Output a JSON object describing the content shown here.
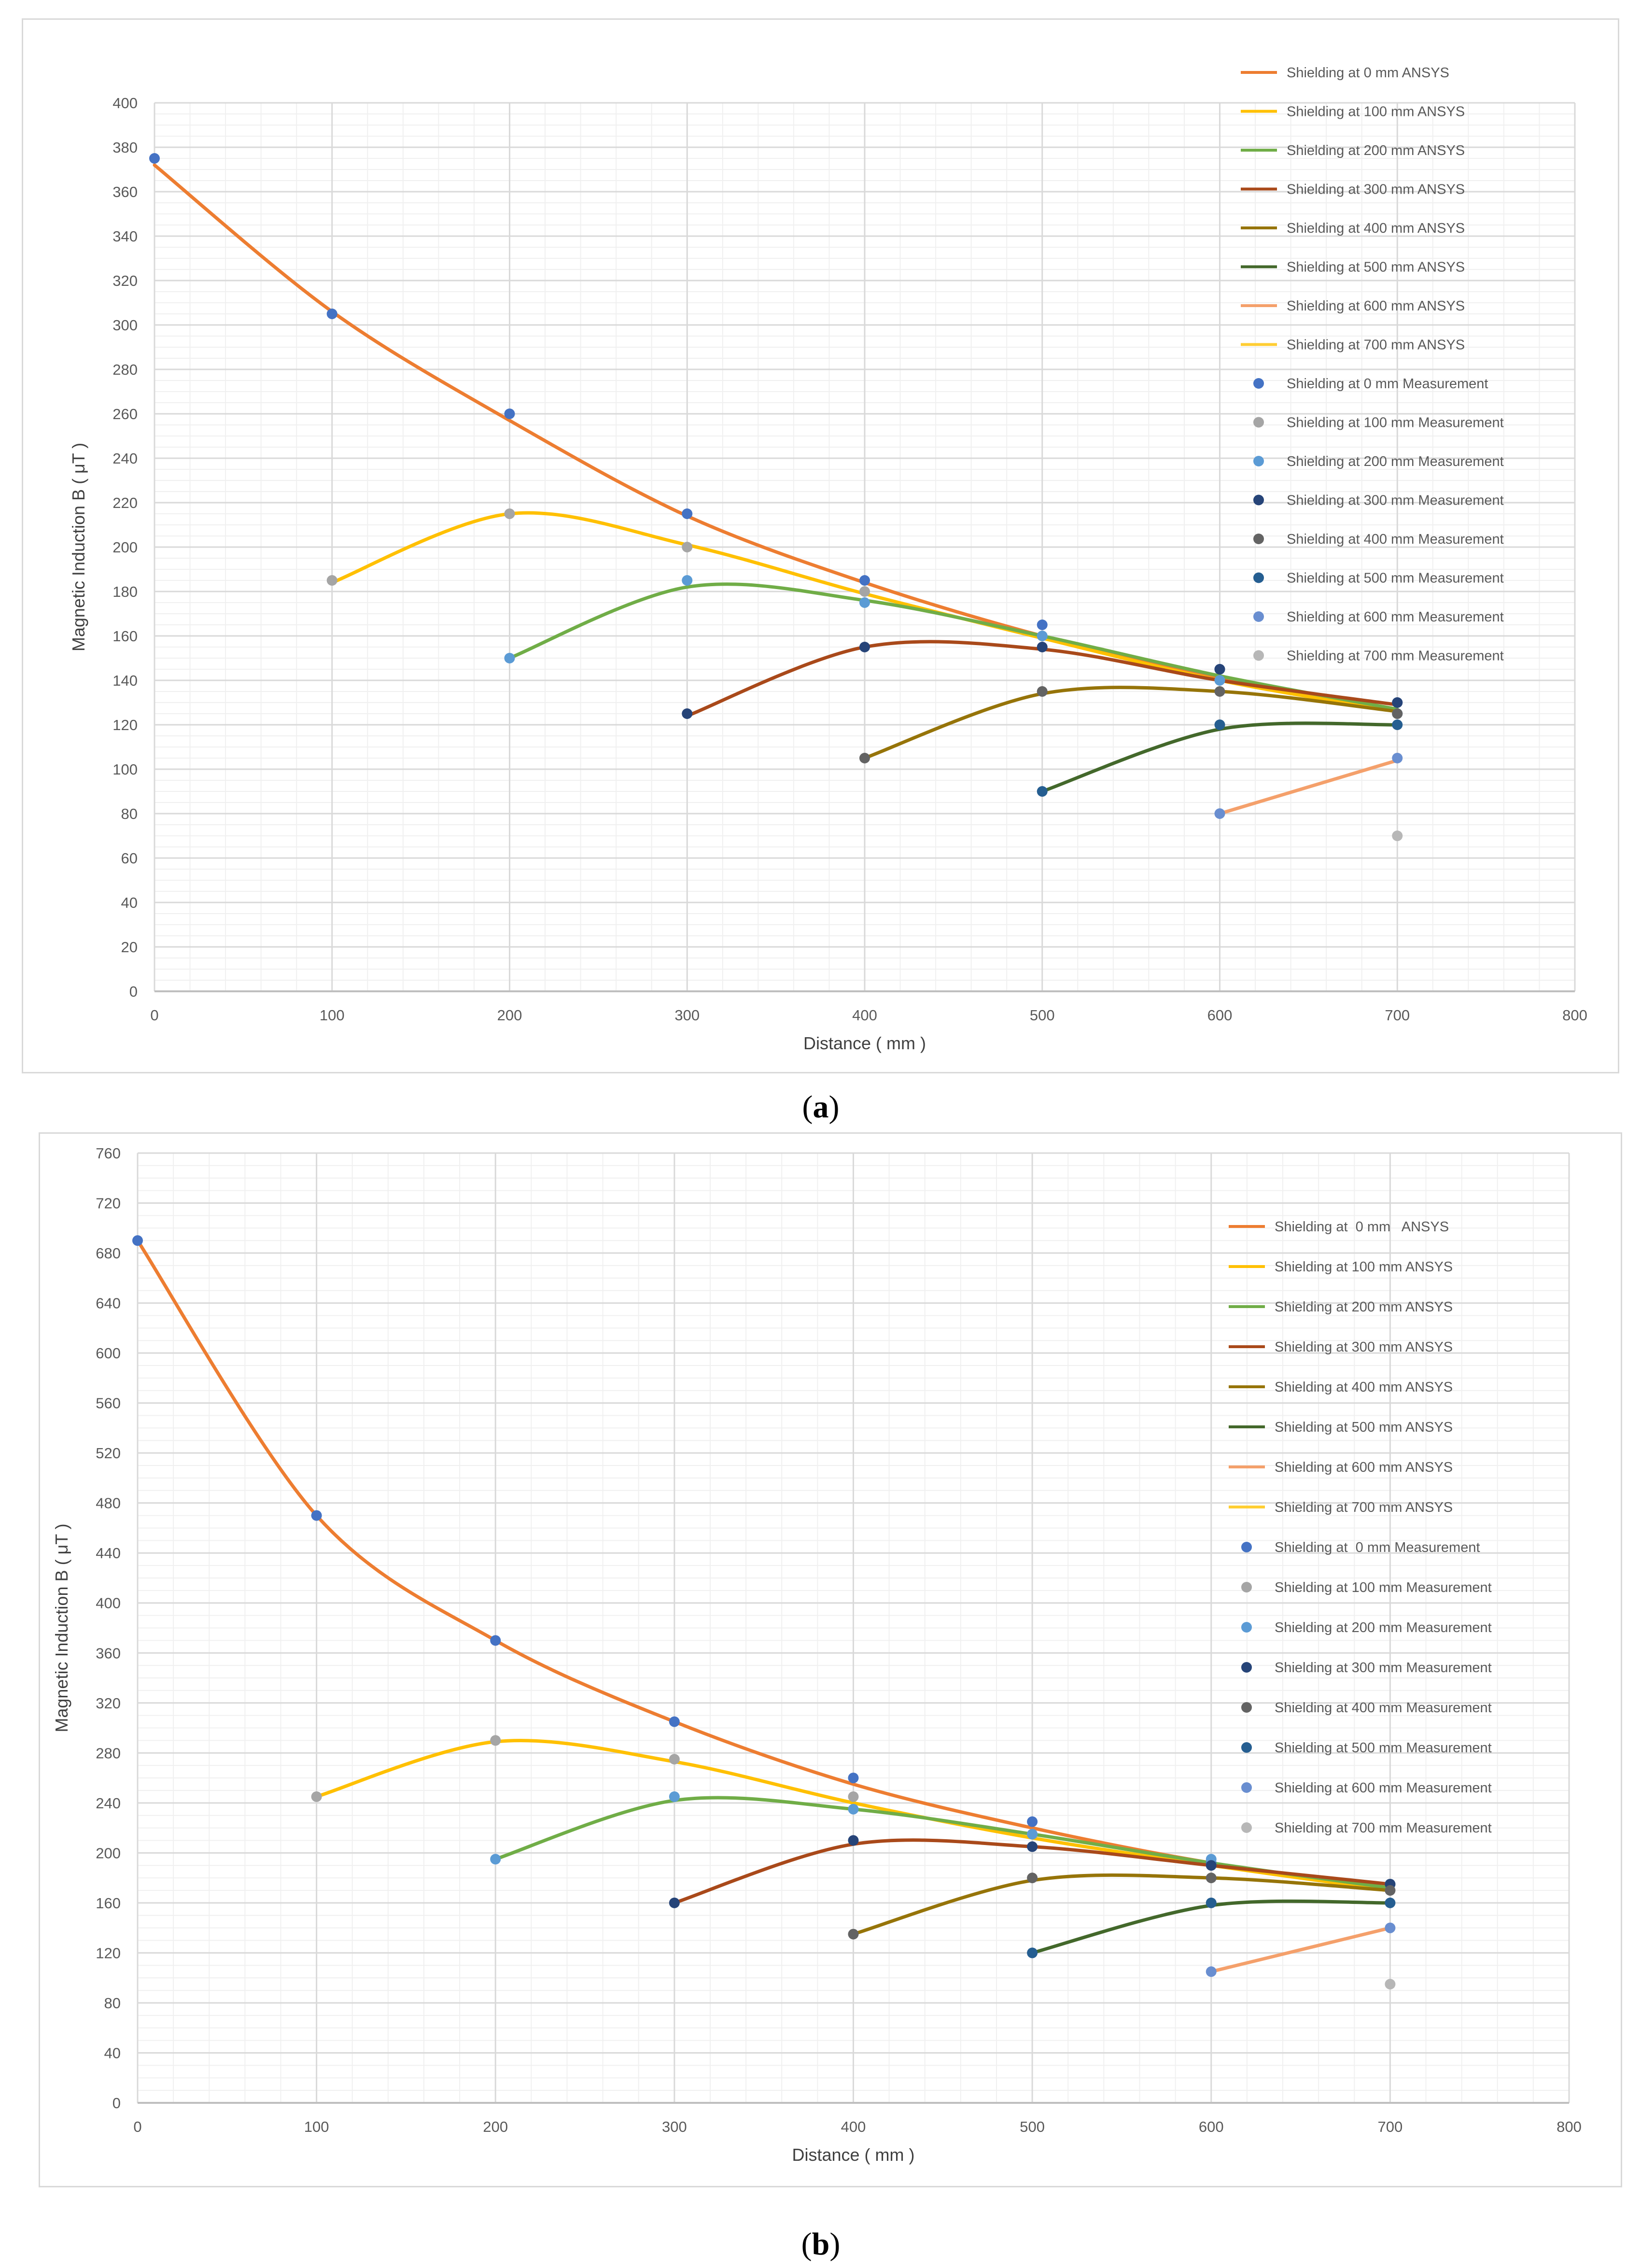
{
  "figure": {
    "panel_a_label": "a",
    "panel_b_label": "b",
    "colors": {
      "orange": "#ED7D31",
      "yellow": "#FFC000",
      "green": "#70AD47",
      "brown": "#A9491A",
      "olive": "#967409",
      "darkgreen": "#43682B",
      "lightorange": "#F4A06B",
      "lightyellow": "#FFCE33",
      "m_blue": "#4472C4",
      "m_gray": "#A5A5A5",
      "m_lightblue": "#5B9BD5",
      "m_navy": "#264478",
      "m_darkgray": "#636363",
      "m_steel": "#255E91",
      "m_periwinkle": "#698ED0",
      "m_silver": "#B7B7B7"
    }
  },
  "chart_data": [
    {
      "type": "line",
      "panel": "a",
      "xlabel": "Distance ( mm )",
      "ylabel": "Magnetic Induction B ( μT )",
      "xlim": [
        0,
        800
      ],
      "ylim": [
        0,
        400
      ],
      "xticks": [
        0,
        100,
        200,
        300,
        400,
        500,
        600,
        700,
        800
      ],
      "yticks": [
        0,
        20,
        40,
        60,
        80,
        100,
        120,
        140,
        160,
        180,
        200,
        220,
        240,
        260,
        280,
        300,
        320,
        340,
        360,
        380,
        400
      ],
      "legend_position": "top-right",
      "ansys_series": [
        {
          "name": "Shielding at 0 mm ANSYS",
          "color": "#ED7D31",
          "x": [
            0,
            100,
            200,
            300,
            400,
            500,
            600,
            700
          ],
          "y": [
            372,
            306,
            257,
            214,
            184,
            160,
            141,
            126
          ]
        },
        {
          "name": "Shielding at 100 mm ANSYS",
          "color": "#FFC000",
          "x": [
            100,
            200,
            300,
            400,
            500,
            600,
            700
          ],
          "y": [
            184,
            215,
            201,
            179,
            159,
            140,
            126
          ]
        },
        {
          "name": "Shielding at 200 mm ANSYS",
          "color": "#70AD47",
          "x": [
            200,
            300,
            400,
            500,
            600,
            700
          ],
          "y": [
            150,
            182,
            176,
            160,
            142,
            127
          ]
        },
        {
          "name": "Shielding at 300 mm ANSYS",
          "color": "#A9491A",
          "x": [
            300,
            400,
            500,
            600,
            700
          ],
          "y": [
            124,
            155,
            154,
            140,
            129
          ]
        },
        {
          "name": "Shielding at 400 mm ANSYS",
          "color": "#967409",
          "x": [
            400,
            500,
            600,
            700
          ],
          "y": [
            105,
            134,
            135,
            126
          ]
        },
        {
          "name": "Shielding at 500 mm ANSYS",
          "color": "#43682B",
          "x": [
            500,
            600,
            700
          ],
          "y": [
            90,
            118,
            120
          ]
        },
        {
          "name": "Shielding at 600 mm ANSYS",
          "color": "#F4A06B",
          "x": [
            600,
            700
          ],
          "y": [
            80,
            104
          ]
        },
        {
          "name": "Shielding at 700 mm ANSYS",
          "color": "#FFCE33",
          "x": [],
          "y": []
        }
      ],
      "measurement_series": [
        {
          "name": "Shielding at 0 mm Measurement",
          "color": "#4472C4",
          "x": [
            0,
            100,
            200,
            300,
            400,
            500,
            600,
            700
          ],
          "y": [
            375,
            305,
            260,
            215,
            185,
            165,
            145,
            130
          ]
        },
        {
          "name": "Shielding at 100 mm Measurement",
          "color": "#A5A5A5",
          "x": [
            100,
            200,
            300,
            400,
            500,
            600,
            700
          ],
          "y": [
            185,
            215,
            200,
            180,
            160,
            140,
            125
          ]
        },
        {
          "name": "Shielding at 200 mm Measurement",
          "color": "#5B9BD5",
          "x": [
            200,
            300,
            400,
            500,
            600,
            700
          ],
          "y": [
            150,
            185,
            175,
            160,
            140,
            125
          ]
        },
        {
          "name": "Shielding at 300 mm Measurement",
          "color": "#264478",
          "x": [
            300,
            400,
            500,
            600,
            700
          ],
          "y": [
            125,
            155,
            155,
            145,
            130
          ]
        },
        {
          "name": "Shielding at 400 mm Measurement",
          "color": "#636363",
          "x": [
            400,
            500,
            600,
            700
          ],
          "y": [
            105,
            135,
            135,
            125
          ]
        },
        {
          "name": "Shielding at 500 mm Measurement",
          "color": "#255E91",
          "x": [
            500,
            600,
            700
          ],
          "y": [
            90,
            120,
            120
          ]
        },
        {
          "name": "Shielding at 600 mm Measurement",
          "color": "#698ED0",
          "x": [
            600,
            700
          ],
          "y": [
            80,
            105
          ]
        },
        {
          "name": "Shielding at 700 mm Measurement",
          "color": "#B7B7B7",
          "x": [
            700
          ],
          "y": [
            70
          ]
        }
      ]
    },
    {
      "type": "line",
      "panel": "b",
      "xlabel": "Distance ( mm )",
      "ylabel": "Magnetic Induction B ( μT )",
      "xlim": [
        0,
        800
      ],
      "ylim": [
        0,
        760
      ],
      "xticks": [
        0,
        100,
        200,
        300,
        400,
        500,
        600,
        700,
        800
      ],
      "yticks": [
        0,
        40,
        80,
        120,
        160,
        200,
        240,
        280,
        320,
        360,
        400,
        440,
        480,
        520,
        560,
        600,
        640,
        680,
        720,
        760
      ],
      "legend_position": "top-right",
      "ansys_series": [
        {
          "name": "Shielding at  0 mm   ANSYS",
          "color": "#ED7D31",
          "x": [
            0,
            100,
            200,
            300,
            400,
            500,
            600,
            700
          ],
          "y": [
            690,
            470,
            370,
            305,
            255,
            220,
            192,
            172
          ]
        },
        {
          "name": "Shielding at 100 mm ANSYS",
          "color": "#FFC000",
          "x": [
            100,
            200,
            300,
            400,
            500,
            600,
            700
          ],
          "y": [
            245,
            289,
            273,
            240,
            212,
            190,
            170
          ]
        },
        {
          "name": "Shielding at 200 mm ANSYS",
          "color": "#70AD47",
          "x": [
            200,
            300,
            400,
            500,
            600,
            700
          ],
          "y": [
            195,
            242,
            235,
            215,
            192,
            172
          ]
        },
        {
          "name": "Shielding at 300 mm ANSYS",
          "color": "#A9491A",
          "x": [
            300,
            400,
            500,
            600,
            700
          ],
          "y": [
            160,
            207,
            205,
            190,
            175
          ]
        },
        {
          "name": "Shielding at 400 mm ANSYS",
          "color": "#967409",
          "x": [
            400,
            500,
            600,
            700
          ],
          "y": [
            135,
            178,
            180,
            170
          ]
        },
        {
          "name": "Shielding at 500 mm ANSYS",
          "color": "#43682B",
          "x": [
            500,
            600,
            700
          ],
          "y": [
            120,
            158,
            160
          ]
        },
        {
          "name": "Shielding at 600 mm ANSYS",
          "color": "#F4A06B",
          "x": [
            600,
            700
          ],
          "y": [
            105,
            140
          ]
        },
        {
          "name": "Shielding at 700 mm ANSYS",
          "color": "#FFCE33",
          "x": [],
          "y": []
        }
      ],
      "measurement_series": [
        {
          "name": "Shielding at  0 mm Measurement",
          "color": "#4472C4",
          "x": [
            0,
            100,
            200,
            300,
            400,
            500,
            600,
            700
          ],
          "y": [
            690,
            470,
            370,
            305,
            260,
            225,
            192,
            175
          ]
        },
        {
          "name": "Shielding at 100 mm Measurement",
          "color": "#A5A5A5",
          "x": [
            100,
            200,
            300,
            400,
            500,
            600,
            700
          ],
          "y": [
            245,
            290,
            275,
            245,
            215,
            190,
            170
          ]
        },
        {
          "name": "Shielding at 200 mm Measurement",
          "color": "#5B9BD5",
          "x": [
            200,
            300,
            400,
            500,
            600,
            700
          ],
          "y": [
            195,
            245,
            235,
            215,
            195,
            175
          ]
        },
        {
          "name": "Shielding at 300 mm Measurement",
          "color": "#264478",
          "x": [
            300,
            400,
            500,
            600,
            700
          ],
          "y": [
            160,
            210,
            205,
            190,
            175
          ]
        },
        {
          "name": "Shielding at 400 mm Measurement",
          "color": "#636363",
          "x": [
            400,
            500,
            600,
            700
          ],
          "y": [
            135,
            180,
            180,
            170
          ]
        },
        {
          "name": "Shielding at 500 mm Measurement",
          "color": "#255E91",
          "x": [
            500,
            600,
            700
          ],
          "y": [
            120,
            160,
            160
          ]
        },
        {
          "name": "Shielding at 600 mm Measurement",
          "color": "#698ED0",
          "x": [
            600,
            700
          ],
          "y": [
            105,
            140
          ]
        },
        {
          "name": "Shielding at 700 mm Measurement",
          "color": "#B7B7B7",
          "x": [
            700
          ],
          "y": [
            95
          ]
        }
      ]
    }
  ]
}
